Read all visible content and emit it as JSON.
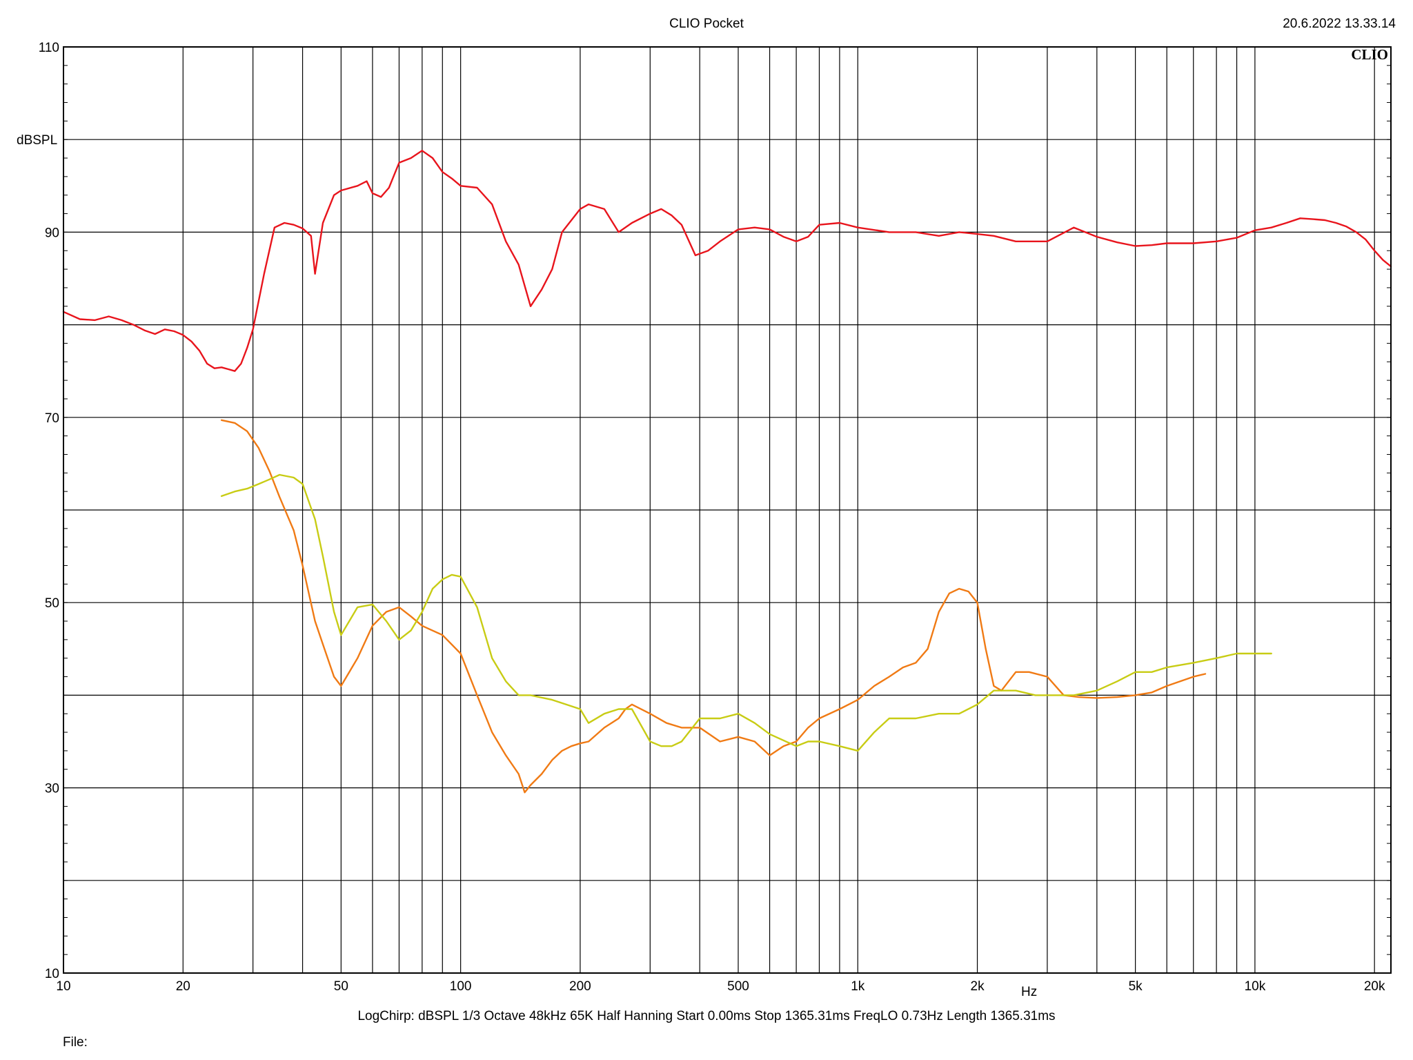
{
  "header": {
    "title": "CLIO Pocket",
    "timestamp": "20.6.2022 13.33.14"
  },
  "footer": {
    "settings": "LogChirp:  dBSPL   1/3 Octave   48kHz   65K   Half Hanning   Start 0.00ms    Stop 1365.31ms    FreqLO 0.73Hz    Length 1365.31ms",
    "file_label": "File:"
  },
  "chart_data": {
    "type": "line",
    "title": "CLIO Pocket",
    "ylabel": "dBSPL",
    "xlabel": "Hz",
    "x_scale": "log",
    "xlim": [
      10,
      22000
    ],
    "ylim": [
      10,
      110
    ],
    "grid": true,
    "brand_text": "CLIO",
    "x_ticks": [
      {
        "value": 10,
        "label": "10"
      },
      {
        "value": 20,
        "label": "20"
      },
      {
        "value": 50,
        "label": "50"
      },
      {
        "value": 100,
        "label": "100"
      },
      {
        "value": 200,
        "label": "200"
      },
      {
        "value": 500,
        "label": "500"
      },
      {
        "value": 1000,
        "label": "1k"
      },
      {
        "value": 2000,
        "label": "2k"
      },
      {
        "value": 5000,
        "label": "5k"
      },
      {
        "value": 10000,
        "label": "10k"
      },
      {
        "value": 20000,
        "label": "20k"
      }
    ],
    "y_ticks": [
      {
        "value": 10,
        "label": "10"
      },
      {
        "value": 30,
        "label": "30"
      },
      {
        "value": 50,
        "label": "50"
      },
      {
        "value": 70,
        "label": "70"
      },
      {
        "value": 90,
        "label": "90"
      },
      {
        "value": 110,
        "label": "110"
      }
    ],
    "series": [
      {
        "color": "#e8141c",
        "x": [
          10,
          11,
          12,
          13,
          14,
          15,
          16,
          17,
          18,
          19,
          20,
          21,
          22,
          23,
          24,
          25,
          26,
          27,
          28,
          29,
          30,
          32,
          34,
          36,
          38,
          40,
          42,
          43,
          45,
          48,
          50,
          55,
          58,
          60,
          63,
          66,
          70,
          75,
          80,
          85,
          90,
          95,
          100,
          110,
          120,
          130,
          140,
          150,
          160,
          170,
          180,
          200,
          210,
          230,
          250,
          270,
          300,
          320,
          340,
          360,
          390,
          420,
          450,
          500,
          550,
          600,
          650,
          700,
          750,
          800,
          900,
          1000,
          1200,
          1400,
          1600,
          1800,
          2000,
          2200,
          2500,
          2800,
          3000,
          3500,
          4000,
          4500,
          5000,
          5500,
          6000,
          7000,
          8000,
          9000,
          10000,
          11000,
          12000,
          13000,
          14000,
          15000,
          16000,
          17000,
          18000,
          19000,
          20000,
          21000,
          22000
        ],
        "y": [
          81.4,
          80.6,
          80.5,
          80.9,
          80.5,
          80.0,
          79.4,
          79.0,
          79.5,
          79.3,
          78.9,
          78.2,
          77.2,
          75.8,
          75.3,
          75.4,
          75.2,
          75.0,
          75.8,
          77.5,
          79.5,
          85.5,
          90.5,
          91.0,
          90.8,
          90.4,
          89.6,
          85.5,
          91.0,
          94.0,
          94.5,
          95.0,
          95.5,
          94.2,
          93.8,
          94.8,
          97.5,
          98.0,
          98.8,
          98.0,
          96.5,
          95.8,
          95.0,
          94.8,
          93.0,
          89.0,
          86.5,
          82.0,
          83.8,
          86.0,
          90.0,
          92.5,
          93.0,
          92.5,
          90.0,
          91.0,
          92.0,
          92.5,
          91.8,
          90.8,
          87.5,
          88.0,
          89.0,
          90.3,
          90.5,
          90.3,
          89.5,
          89.0,
          89.5,
          90.8,
          91.0,
          90.5,
          90.0,
          90.0,
          89.6,
          90.0,
          89.8,
          89.6,
          89.0,
          89.0,
          89.0,
          90.5,
          89.5,
          88.9,
          88.5,
          88.6,
          88.8,
          88.8,
          89.0,
          89.4,
          90.2,
          90.5,
          91.0,
          91.5,
          91.4,
          91.3,
          91.0,
          90.6,
          90.0,
          89.2,
          88.0,
          87.0,
          86.3
        ]
      },
      {
        "color": "#f07a14",
        "x": [
          25,
          27,
          29,
          31,
          33,
          35,
          38,
          40,
          43,
          45,
          48,
          50,
          55,
          60,
          65,
          70,
          75,
          80,
          90,
          100,
          110,
          120,
          130,
          140,
          145,
          150,
          160,
          170,
          180,
          190,
          200,
          210,
          230,
          250,
          260,
          270,
          300,
          330,
          360,
          400,
          450,
          500,
          550,
          600,
          650,
          700,
          750,
          800,
          900,
          1000,
          1100,
          1200,
          1300,
          1400,
          1500,
          1600,
          1700,
          1800,
          1900,
          2000,
          2100,
          2200,
          2300,
          2500,
          2700,
          3000,
          3300,
          3600,
          4000,
          4500,
          5000,
          5500,
          6000,
          7000,
          7500
        ],
        "y": [
          69.7,
          69.4,
          68.5,
          66.7,
          64.2,
          61.4,
          57.8,
          54.0,
          48.0,
          45.5,
          42.0,
          41.0,
          44.0,
          47.5,
          49.0,
          49.5,
          48.5,
          47.5,
          46.5,
          44.5,
          40.0,
          36.0,
          33.5,
          31.5,
          29.5,
          30.3,
          31.5,
          33.0,
          34.0,
          34.5,
          34.8,
          35.0,
          36.5,
          37.5,
          38.5,
          39.0,
          38.0,
          37.0,
          36.5,
          36.5,
          35.0,
          35.5,
          35.0,
          33.5,
          34.5,
          35.0,
          36.5,
          37.5,
          38.5,
          39.5,
          41.0,
          42.0,
          43.0,
          43.5,
          45.0,
          49.0,
          51.0,
          51.5,
          51.2,
          50.0,
          45.0,
          41.0,
          40.5,
          42.5,
          42.5,
          42.0,
          40.0,
          39.8,
          39.7,
          39.8,
          40.0,
          40.3,
          41.0,
          42.0,
          42.3
        ]
      },
      {
        "color": "#c8cc14",
        "x": [
          25,
          27,
          29,
          31,
          33,
          35,
          38,
          40,
          43,
          45,
          48,
          50,
          55,
          60,
          65,
          70,
          75,
          80,
          85,
          90,
          95,
          100,
          110,
          120,
          130,
          140,
          150,
          170,
          200,
          210,
          230,
          250,
          270,
          300,
          320,
          340,
          360,
          400,
          450,
          500,
          550,
          600,
          700,
          750,
          800,
          900,
          1000,
          1100,
          1200,
          1400,
          1600,
          1800,
          2000,
          2200,
          2500,
          2800,
          3000,
          3500,
          4000,
          4500,
          5000,
          5500,
          6000,
          7000,
          8000,
          9000,
          10000,
          11000
        ],
        "y": [
          61.5,
          62.0,
          62.3,
          62.8,
          63.3,
          63.8,
          63.5,
          62.8,
          59.0,
          55.0,
          49.0,
          46.5,
          49.5,
          49.8,
          48.0,
          46.0,
          47.0,
          49.0,
          51.5,
          52.5,
          53.0,
          52.8,
          49.5,
          44.0,
          41.5,
          40.0,
          40.0,
          39.5,
          38.5,
          37.0,
          38.0,
          38.5,
          38.5,
          35.0,
          34.5,
          34.5,
          35.0,
          37.5,
          37.5,
          38.0,
          37.0,
          35.8,
          34.5,
          35.0,
          35.0,
          34.5,
          34.0,
          36.0,
          37.5,
          37.5,
          38.0,
          38.0,
          39.0,
          40.5,
          40.5,
          40.0,
          40.0,
          40.0,
          40.5,
          41.5,
          42.5,
          42.5,
          43.0,
          43.5,
          44.0,
          44.5,
          44.5,
          44.5
        ]
      }
    ]
  }
}
